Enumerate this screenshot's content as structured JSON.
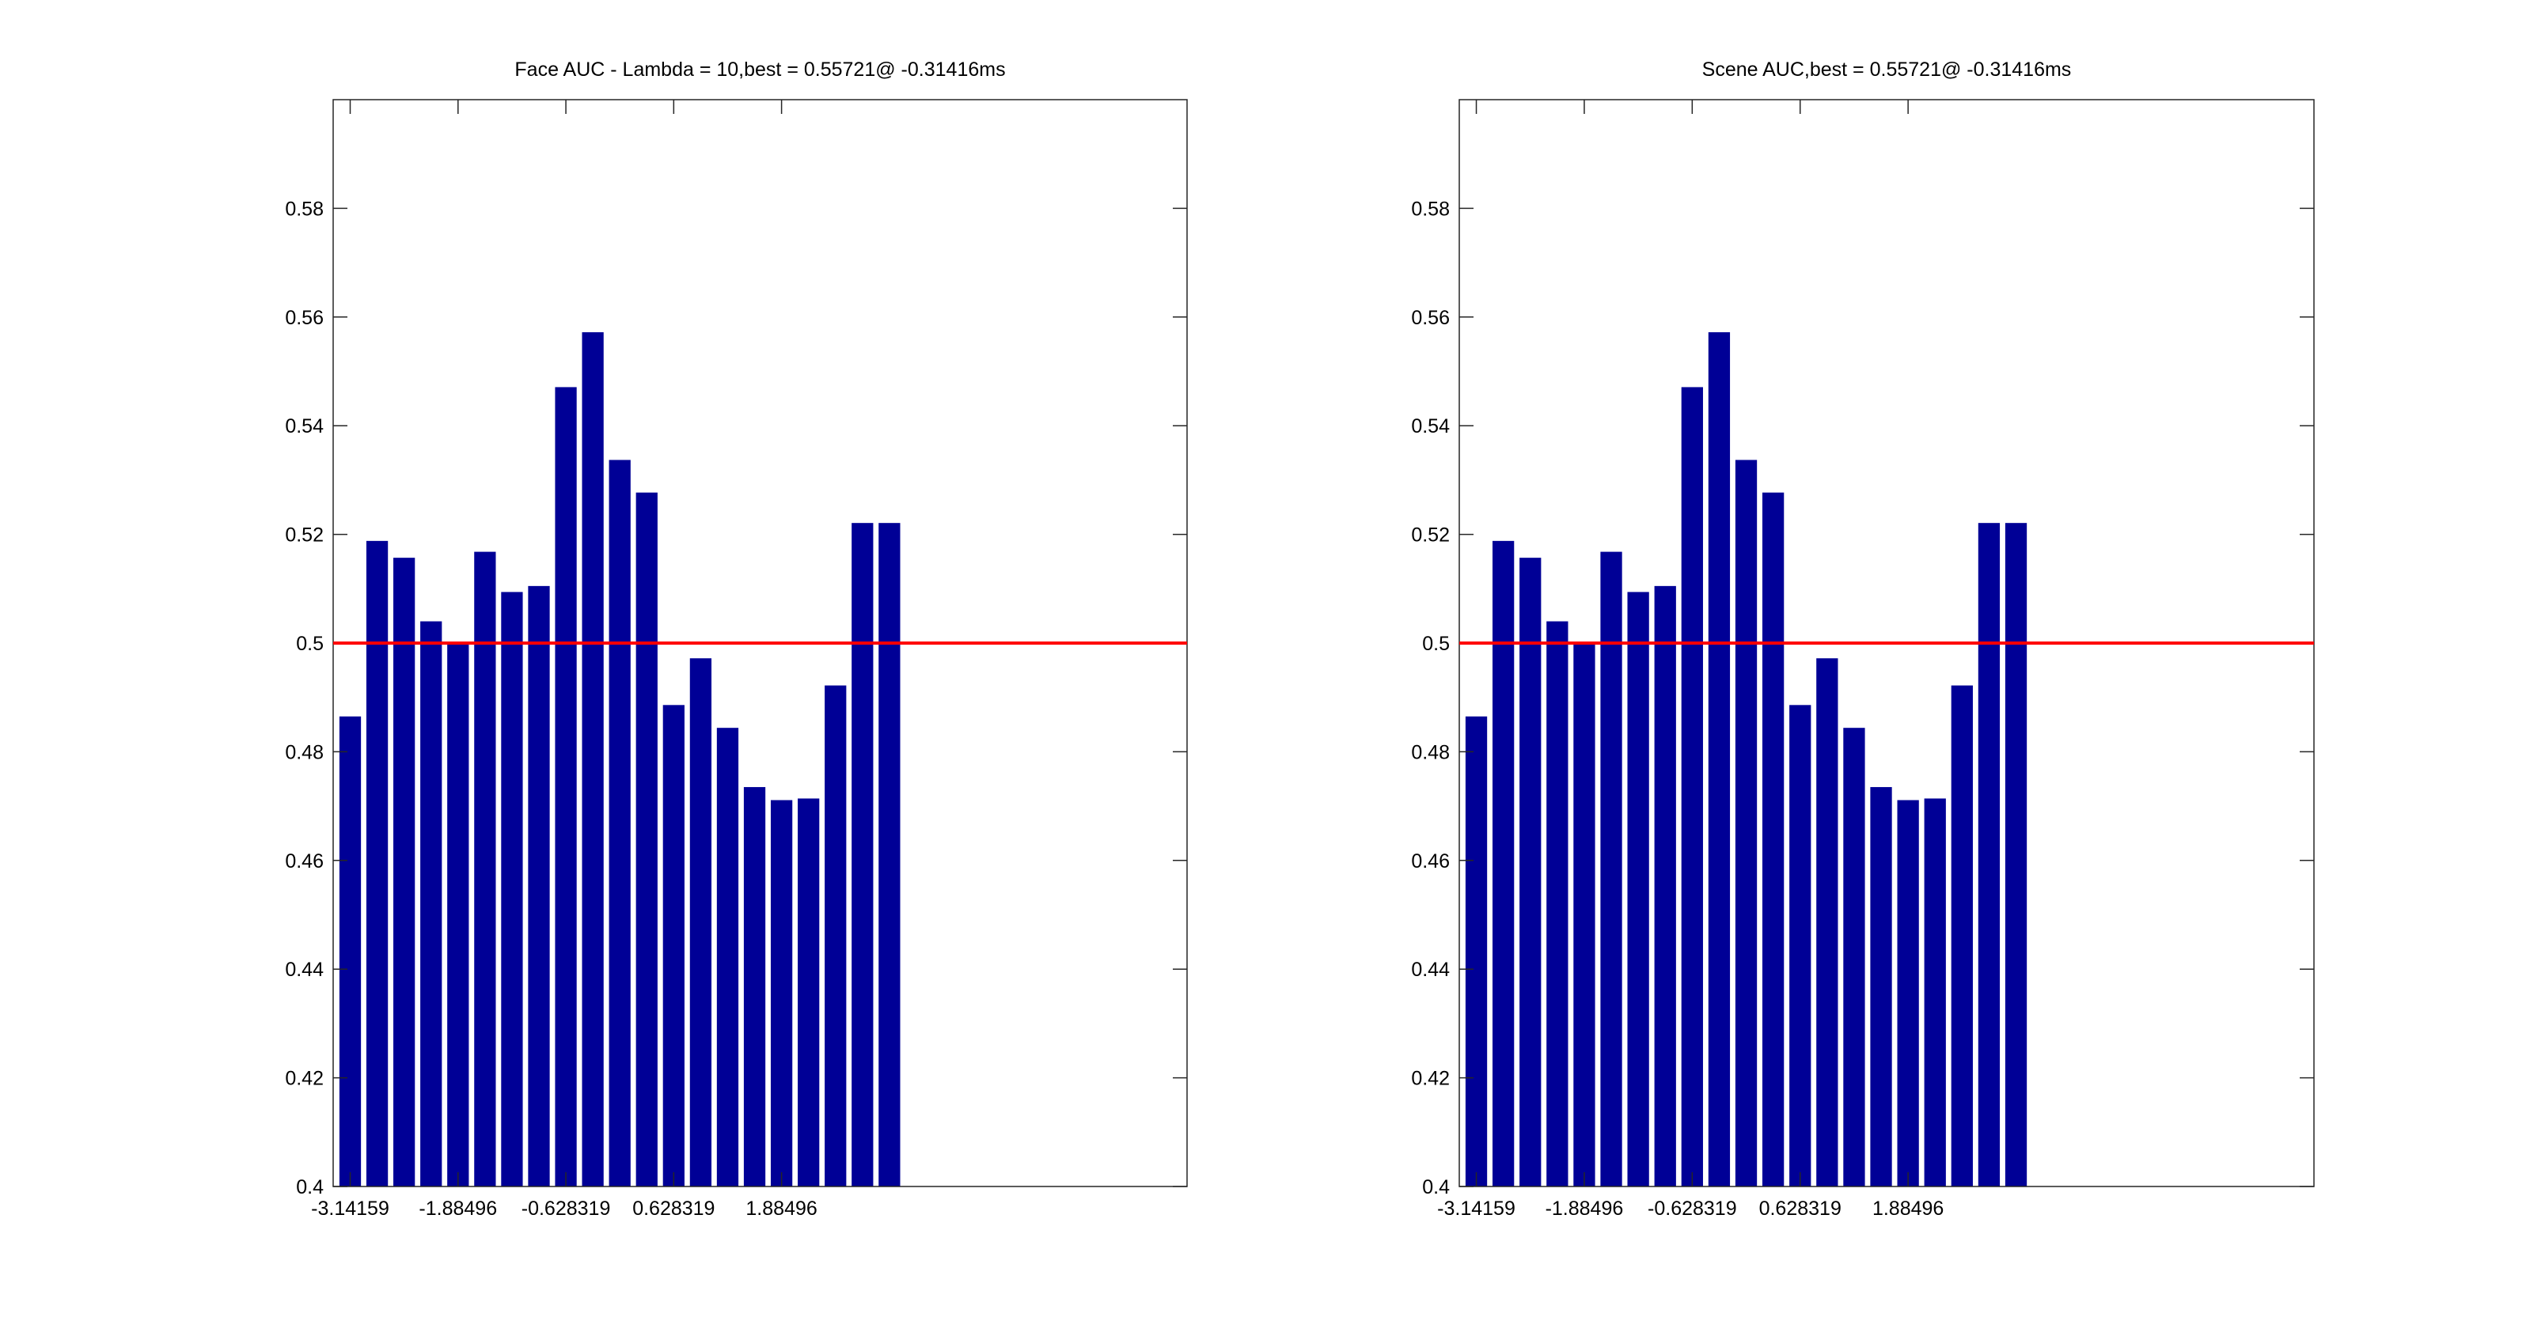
{
  "chart_data": [
    {
      "type": "bar",
      "title": "Face AUC - Lambda = 10,best = 0.55721@ -0.31416ms",
      "x": [
        -3.14159,
        -2.82743,
        -2.51327,
        -2.19911,
        -1.88496,
        -1.5708,
        -1.25664,
        -0.942478,
        -0.628319,
        -0.314159,
        0,
        0.314159,
        0.628319,
        0.942478,
        1.25664,
        1.5708,
        1.88496,
        2.19911,
        2.51327,
        2.82743,
        3.14159
      ],
      "values": [
        0.4865,
        0.5188,
        0.5157,
        0.504,
        0.5,
        0.5168,
        0.5094,
        0.5105,
        0.5471,
        0.5572,
        0.5337,
        0.5277,
        0.4886,
        0.4972,
        0.4844,
        0.4735,
        0.4711,
        0.4714,
        0.4922,
        0.5221,
        0.5221
      ],
      "bar_color": "#000096",
      "xlim": [
        -3.34,
        6.61
      ],
      "ylim": [
        0.4,
        0.6
      ],
      "xticks": [
        -3.14159,
        -1.88496,
        -0.628319,
        0.628319,
        1.88496
      ],
      "xtick_labels": [
        "-3.14159",
        "-1.88496",
        "-0.628319",
        "0.628319",
        "1.88496"
      ],
      "yticks": [
        0.4,
        0.42,
        0.44,
        0.46,
        0.48,
        0.5,
        0.52,
        0.54,
        0.56,
        0.58
      ],
      "ytick_labels": [
        "0.4",
        "0.42",
        "0.44",
        "0.46",
        "0.48",
        "0.5",
        "0.52",
        "0.54",
        "0.56",
        "0.58"
      ],
      "reference_line": {
        "y": 0.5,
        "color": "#ff0000"
      },
      "xlabel": "",
      "ylabel": "",
      "grid": false
    },
    {
      "type": "bar",
      "title": "Scene AUC,best = 0.55721@ -0.31416ms",
      "x": [
        -3.14159,
        -2.82743,
        -2.51327,
        -2.19911,
        -1.88496,
        -1.5708,
        -1.25664,
        -0.942478,
        -0.628319,
        -0.314159,
        0,
        0.314159,
        0.628319,
        0.942478,
        1.25664,
        1.5708,
        1.88496,
        2.19911,
        2.51327,
        2.82743,
        3.14159
      ],
      "values": [
        0.4865,
        0.5188,
        0.5157,
        0.504,
        0.5,
        0.5168,
        0.5094,
        0.5105,
        0.5471,
        0.5572,
        0.5337,
        0.5277,
        0.4886,
        0.4972,
        0.4844,
        0.4735,
        0.4711,
        0.4714,
        0.4922,
        0.5221,
        0.5221
      ],
      "bar_color": "#000096",
      "xlim": [
        -3.34,
        6.61
      ],
      "ylim": [
        0.4,
        0.6
      ],
      "xticks": [
        -3.14159,
        -1.88496,
        -0.628319,
        0.628319,
        1.88496
      ],
      "xtick_labels": [
        "-3.14159",
        "-1.88496",
        "-0.628319",
        "0.628319",
        "1.88496"
      ],
      "yticks": [
        0.4,
        0.42,
        0.44,
        0.46,
        0.48,
        0.5,
        0.52,
        0.54,
        0.56,
        0.58
      ],
      "ytick_labels": [
        "0.4",
        "0.42",
        "0.44",
        "0.46",
        "0.48",
        "0.5",
        "0.52",
        "0.54",
        "0.56",
        "0.58"
      ],
      "reference_line": {
        "y": 0.5,
        "color": "#ff0000"
      },
      "xlabel": "",
      "ylabel": "",
      "grid": false
    }
  ]
}
